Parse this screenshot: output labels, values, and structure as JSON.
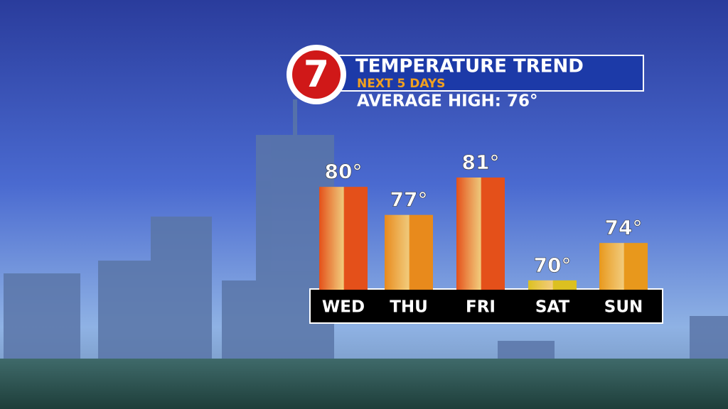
{
  "logo": "7",
  "chart_data": {
    "type": "bar",
    "title": "TEMPERATURE TREND",
    "subtitle": "NEXT 5 DAYS",
    "annotation": "AVERAGE HIGH: 76°",
    "categories": [
      "WED",
      "THU",
      "FRI",
      "SAT",
      "SUN"
    ],
    "values": [
      80,
      77,
      81,
      70,
      74
    ],
    "value_labels": [
      "80°",
      "77°",
      "81°",
      "70°",
      "74°"
    ],
    "colors": [
      "#e4501a",
      "#e88a1c",
      "#e4501a",
      "#dcc020",
      "#e8981c"
    ],
    "ylim": [
      69,
      81
    ]
  }
}
